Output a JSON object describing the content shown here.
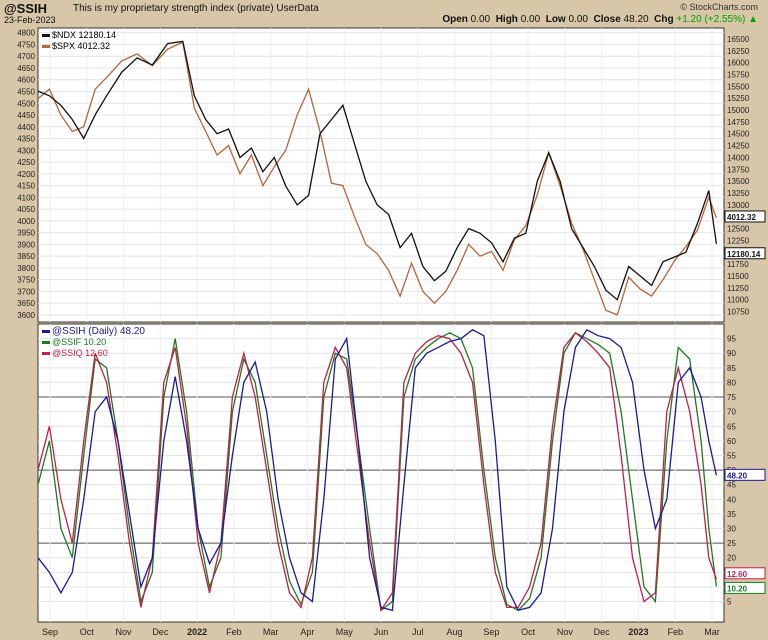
{
  "header": {
    "symbol": "@SSIH",
    "description": "This is my proprietary strength index (private)",
    "source": "UserData",
    "date": "23-Feb-2023",
    "open_label": "Open",
    "open": "0.00",
    "high_label": "High",
    "high": "0.00",
    "low_label": "Low",
    "low": "0.00",
    "close_label": "Close",
    "close": "48.20",
    "chg_label": "Chg",
    "chg": "+1.20 (+2.55%)",
    "arrow": "▲",
    "brand": "© StockCharts.com"
  },
  "chart_data": [
    {
      "type": "line",
      "title": "",
      "x_axis_labels": [
        "Sep",
        "Oct",
        "Nov",
        "Dec",
        "2022",
        "Feb",
        "Mar",
        "Apr",
        "May",
        "Jun",
        "Jul",
        "Aug",
        "Sep",
        "Oct",
        "Nov",
        "Dec",
        "2023",
        "Feb",
        "Mar"
      ],
      "left_axis": {
        "ticks": [
          3600,
          3650,
          3700,
          3750,
          3800,
          3850,
          3900,
          3950,
          4000,
          4050,
          4100,
          4150,
          4200,
          4250,
          4300,
          4350,
          4400,
          4450,
          4500,
          4550,
          4600,
          4650,
          4700,
          4750,
          4800
        ],
        "ylim": [
          3570,
          4820
        ]
      },
      "right_axis": {
        "ticks": [
          10750,
          11000,
          11250,
          11500,
          11750,
          12000,
          12250,
          12500,
          12750,
          13000,
          13250,
          13500,
          13750,
          14000,
          14250,
          14500,
          14750,
          15000,
          15250,
          15500,
          15750,
          16000,
          16250,
          16500
        ],
        "ylim": [
          10530,
          16730
        ]
      },
      "series": [
        {
          "name": "$NDX",
          "legend_value": "12180.14",
          "color": "#111111",
          "axis": "right",
          "last_label": "12180.14",
          "x": [
            0,
            3,
            6,
            9,
            12,
            15,
            18,
            22,
            26,
            30,
            34,
            38,
            41,
            44,
            47,
            50,
            53,
            56,
            59,
            62,
            65,
            68,
            71,
            74,
            77,
            80,
            83,
            86,
            89,
            92,
            95,
            98,
            101,
            104,
            107,
            110,
            113,
            116,
            119,
            122,
            125,
            128,
            131,
            134,
            137,
            140,
            143,
            146,
            149,
            152,
            155,
            158,
            161,
            164,
            167,
            170,
            173,
            176,
            178
          ],
          "values": [
            15400,
            15300,
            15100,
            14800,
            14400,
            14900,
            15300,
            15800,
            16100,
            15950,
            16400,
            16450,
            15300,
            14800,
            14500,
            14600,
            14000,
            14200,
            13700,
            14000,
            13400,
            13000,
            13200,
            14500,
            14800,
            15100,
            14300,
            13500,
            13000,
            12800,
            12100,
            12400,
            11700,
            11400,
            11600,
            12100,
            12500,
            12400,
            12200,
            11800,
            12300,
            12400,
            13500,
            14100,
            13500,
            12500,
            12100,
            11700,
            11200,
            11000,
            11700,
            11500,
            11300,
            11800,
            11900,
            12000,
            12600,
            13300,
            12180.14
          ]
        },
        {
          "name": "$SPX",
          "legend_value": "4012.32",
          "color": "#b5653a",
          "axis": "left",
          "last_label": "4012.32",
          "x": [
            0,
            3,
            6,
            9,
            12,
            15,
            18,
            22,
            26,
            30,
            34,
            38,
            41,
            44,
            47,
            50,
            53,
            56,
            59,
            62,
            65,
            68,
            71,
            74,
            77,
            80,
            83,
            86,
            89,
            92,
            95,
            98,
            101,
            104,
            107,
            110,
            113,
            116,
            119,
            122,
            125,
            128,
            131,
            134,
            137,
            140,
            143,
            146,
            149,
            152,
            155,
            158,
            161,
            164,
            167,
            170,
            173,
            176,
            178
          ],
          "values": [
            4520,
            4560,
            4450,
            4380,
            4400,
            4560,
            4610,
            4680,
            4710,
            4660,
            4730,
            4760,
            4480,
            4380,
            4280,
            4320,
            4200,
            4280,
            4150,
            4230,
            4300,
            4450,
            4560,
            4380,
            4160,
            4150,
            4020,
            3900,
            3860,
            3790,
            3680,
            3820,
            3700,
            3650,
            3700,
            3790,
            3900,
            3850,
            3870,
            3790,
            3920,
            3980,
            4110,
            4290,
            4150,
            3990,
            3880,
            3750,
            3620,
            3600,
            3760,
            3710,
            3680,
            3750,
            3830,
            3890,
            3960,
            4100,
            4012.32
          ]
        }
      ]
    },
    {
      "type": "line",
      "title": "",
      "x_axis_labels": [
        "Sep",
        "Oct",
        "Nov",
        "Dec",
        "2022",
        "Feb",
        "Mar",
        "Apr",
        "May",
        "Jun",
        "Jul",
        "Aug",
        "Sep",
        "Oct",
        "Nov",
        "Dec",
        "2023",
        "Feb",
        "Mar"
      ],
      "right_axis": {
        "ticks": [
          5,
          10,
          15,
          20,
          25,
          30,
          35,
          40,
          45,
          50,
          55,
          60,
          65,
          70,
          75,
          80,
          85,
          90,
          95
        ],
        "ylim": [
          -2,
          100
        ]
      },
      "reference_lines": [
        25,
        50,
        75
      ],
      "series": [
        {
          "name": "@SSIH (Daily)",
          "legend_value": "48.20",
          "color": "#1a1a9a",
          "last_label": "48.20",
          "x": [
            0,
            3,
            6,
            9,
            12,
            15,
            18,
            21,
            24,
            27,
            30,
            33,
            36,
            39,
            42,
            45,
            48,
            51,
            54,
            57,
            60,
            63,
            66,
            69,
            72,
            75,
            78,
            81,
            84,
            87,
            90,
            93,
            96,
            99,
            102,
            105,
            108,
            111,
            114,
            117,
            120,
            123,
            126,
            129,
            132,
            135,
            138,
            141,
            144,
            147,
            150,
            153,
            156,
            159,
            162,
            165,
            168,
            171,
            174,
            176,
            178
          ],
          "values": [
            20,
            15,
            8,
            15,
            40,
            70,
            75,
            60,
            35,
            10,
            20,
            60,
            82,
            60,
            30,
            18,
            25,
            55,
            80,
            87,
            70,
            40,
            20,
            8,
            5,
            40,
            88,
            95,
            60,
            20,
            3,
            2,
            45,
            85,
            90,
            92,
            94,
            95,
            98,
            96,
            60,
            10,
            2,
            3,
            8,
            30,
            70,
            92,
            98,
            96,
            95,
            92,
            80,
            50,
            30,
            40,
            80,
            85,
            75,
            60,
            48.2
          ]
        },
        {
          "name": "@SSIF",
          "legend_value": "10.20",
          "color": "#1e7a1e",
          "last_label": "10.20",
          "x": [
            0,
            3,
            6,
            9,
            12,
            15,
            18,
            21,
            24,
            27,
            30,
            33,
            36,
            39,
            42,
            45,
            48,
            51,
            54,
            57,
            60,
            63,
            66,
            69,
            72,
            75,
            78,
            81,
            84,
            87,
            90,
            93,
            96,
            99,
            102,
            105,
            108,
            111,
            114,
            117,
            120,
            123,
            126,
            129,
            132,
            135,
            138,
            141,
            144,
            147,
            150,
            153,
            156,
            159,
            162,
            165,
            168,
            171,
            174,
            176,
            178
          ],
          "values": [
            45,
            60,
            30,
            20,
            55,
            88,
            85,
            60,
            30,
            5,
            15,
            75,
            95,
            70,
            30,
            10,
            20,
            70,
            88,
            80,
            55,
            30,
            12,
            4,
            15,
            75,
            90,
            88,
            60,
            30,
            2,
            5,
            75,
            88,
            92,
            95,
            97,
            95,
            85,
            50,
            20,
            4,
            2,
            6,
            20,
            60,
            90,
            97,
            95,
            93,
            90,
            70,
            40,
            10,
            5,
            60,
            92,
            88,
            60,
            30,
            10.2
          ]
        },
        {
          "name": "@SSIQ",
          "legend_value": "12.60",
          "color": "#c21f4a",
          "last_label": "12.60",
          "x": [
            0,
            3,
            6,
            9,
            12,
            15,
            18,
            21,
            24,
            27,
            30,
            33,
            36,
            39,
            42,
            45,
            48,
            51,
            54,
            57,
            60,
            63,
            66,
            69,
            72,
            75,
            78,
            81,
            84,
            87,
            90,
            93,
            96,
            99,
            102,
            105,
            108,
            111,
            114,
            117,
            120,
            123,
            126,
            129,
            132,
            135,
            138,
            141,
            144,
            147,
            150,
            153,
            156,
            159,
            162,
            165,
            168,
            171,
            174,
            176,
            178
          ],
          "values": [
            50,
            65,
            40,
            25,
            60,
            90,
            80,
            55,
            25,
            3,
            20,
            80,
            92,
            65,
            25,
            8,
            25,
            75,
            90,
            75,
            50,
            25,
            8,
            3,
            20,
            80,
            92,
            85,
            55,
            25,
            2,
            8,
            80,
            90,
            94,
            96,
            95,
            90,
            80,
            45,
            15,
            3,
            3,
            10,
            25,
            65,
            92,
            97,
            94,
            90,
            85,
            55,
            20,
            5,
            8,
            70,
            85,
            70,
            45,
            20,
            12.6
          ]
        }
      ]
    }
  ]
}
